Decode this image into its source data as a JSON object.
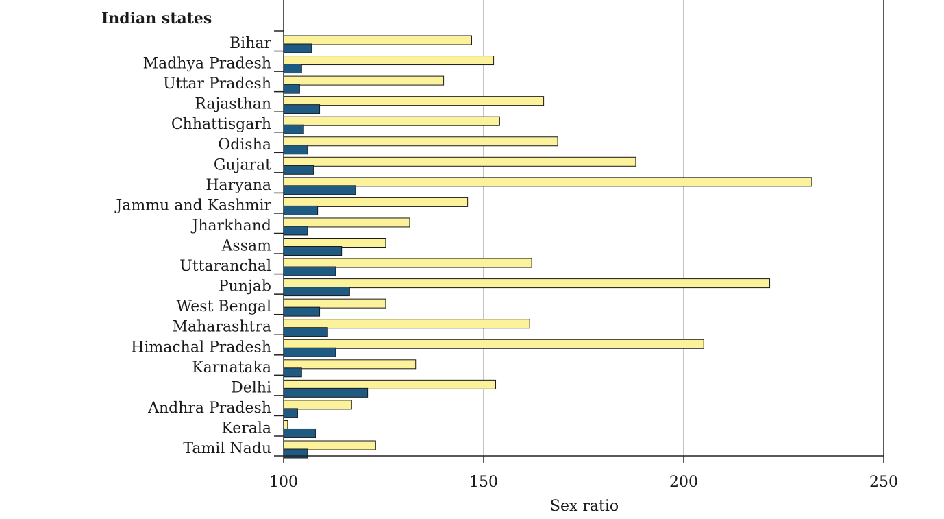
{
  "chart_data": {
    "type": "bar",
    "orientation": "horizontal",
    "title": "Indian states",
    "xlabel": "Sex ratio",
    "ylabel": "",
    "xlim": [
      100,
      250
    ],
    "xticks": [
      100,
      150,
      200,
      250
    ],
    "grid": "vertical",
    "categories": [
      "Bihar",
      "Madhya Pradesh",
      "Uttar Pradesh",
      "Rajasthan",
      "Chhattisgarh",
      "Odisha",
      "Gujarat",
      "Haryana",
      "Jammu and Kashmir",
      "Jharkhand",
      "Assam",
      "Uttaranchal",
      "Punjab",
      "West Bengal",
      "Maharashtra",
      "Himachal Pradesh",
      "Karnataka",
      "Delhi",
      "Andhra Pradesh",
      "Kerala",
      "Tamil Nadu"
    ],
    "series": [
      {
        "color": "#fbf29b",
        "values": [
          147,
          152.5,
          140,
          165,
          154,
          168.5,
          188,
          232,
          146,
          131.5,
          125.5,
          162,
          221.5,
          125.5,
          161.5,
          205,
          133,
          153,
          117,
          101,
          123
        ]
      },
      {
        "color": "#1f5a82",
        "values": [
          107,
          104.5,
          104,
          109,
          105,
          106,
          107.5,
          118,
          108.5,
          106,
          114.5,
          113,
          116.5,
          109,
          111,
          113,
          104.5,
          121,
          103.5,
          108,
          106
        ]
      }
    ]
  }
}
